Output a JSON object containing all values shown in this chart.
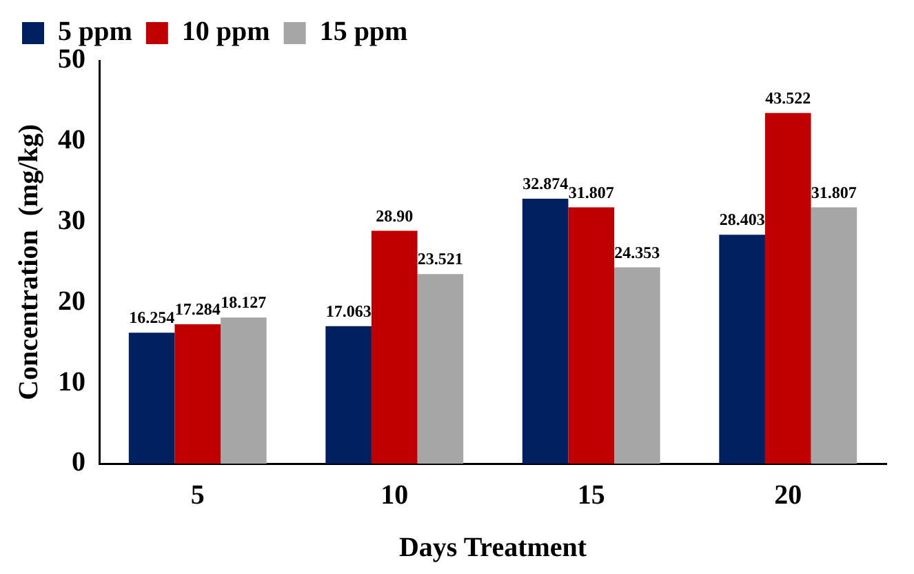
{
  "chart_data": {
    "type": "bar",
    "xlabel": "Days Treatment",
    "ylabel": "Concentration  (mg/kg)",
    "categories": [
      "5",
      "10",
      "15",
      "20"
    ],
    "series": [
      {
        "name": "5 ppm",
        "color": "#002060",
        "values": [
          16.254,
          17.063,
          32.874,
          28.403
        ],
        "value_labels": [
          "16.254",
          "17.063",
          "32.874",
          "28.403"
        ]
      },
      {
        "name": "10 ppm",
        "color": "#c00000",
        "values": [
          17.284,
          28.9,
          31.807,
          43.522
        ],
        "value_labels": [
          "17.284",
          "28.90",
          "31.807",
          "43.522"
        ]
      },
      {
        "name": "15 ppm",
        "color": "#a6a6a6",
        "values": [
          18.127,
          23.521,
          24.353,
          31.807
        ],
        "value_labels": [
          "18.127",
          "23.521",
          "24.353",
          "31.807"
        ]
      }
    ],
    "ylim": [
      0,
      50
    ],
    "yticks": [
      0,
      10,
      20,
      30,
      40,
      50
    ],
    "grid": false,
    "legend": "top left"
  }
}
